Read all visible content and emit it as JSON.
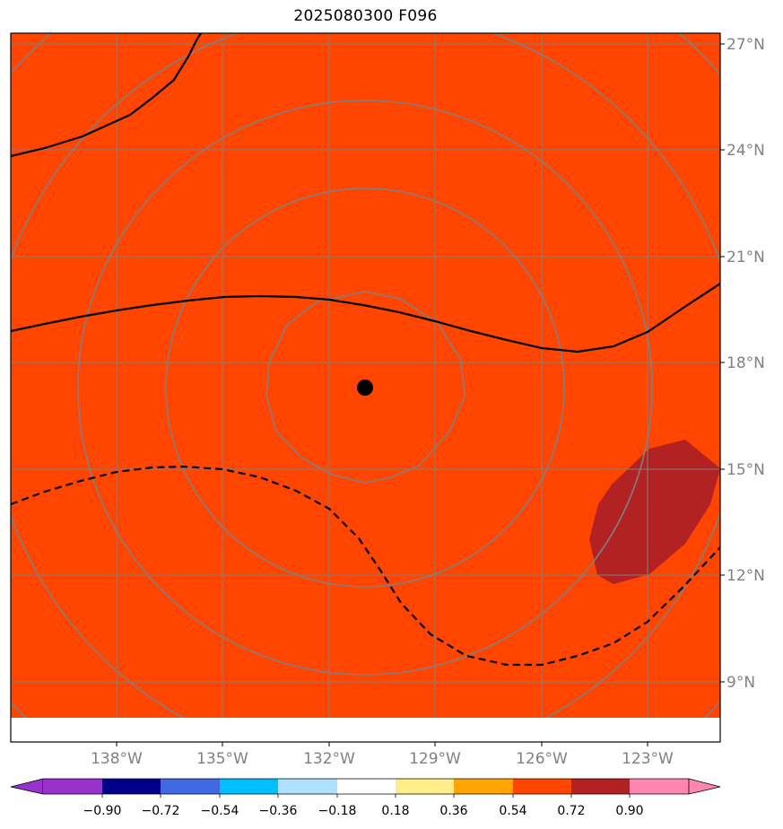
{
  "title": "2025080300 F096",
  "map": {
    "field_color": "#ff4500",
    "patch_color": "#b22222",
    "graticule_color": "#808080",
    "lon_labels": [
      "138°W",
      "135°W",
      "132°W",
      "129°W",
      "126°W",
      "123°W"
    ],
    "lat_labels": [
      "27°N",
      "24°N",
      "21°N",
      "18°N",
      "15°N",
      "12°N",
      "9°N"
    ],
    "center_marker": {
      "lon": -131,
      "lat": 17.3
    }
  },
  "colorbar": {
    "colors": [
      "#9932cc",
      "#00008b",
      "#4169e1",
      "#00bfff",
      "#b0e0ff",
      "#ffffff",
      "#ffec8b",
      "#ffa500",
      "#ff4500",
      "#b22222",
      "#ff86b0"
    ],
    "tick_labels": [
      "−0.90",
      "−0.72",
      "−0.54",
      "−0.36",
      "−0.18",
      "0.18",
      "0.36",
      "0.54",
      "0.72",
      "0.90"
    ]
  }
}
